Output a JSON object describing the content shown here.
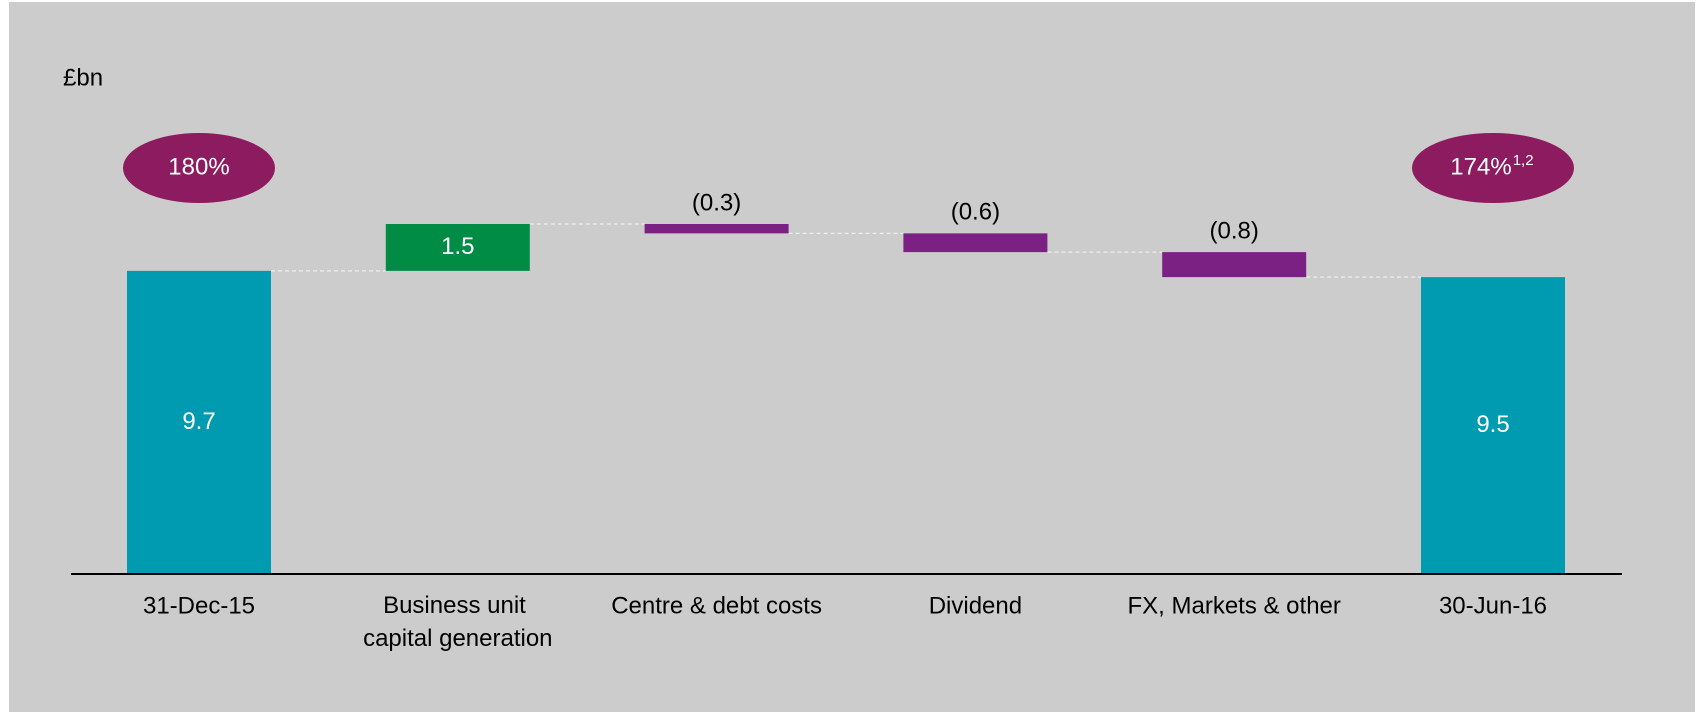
{
  "chart_data": {
    "type": "waterfall",
    "unit": "£bn",
    "categories": [
      "31-Dec-15",
      "Business unit capital generation",
      "Centre & debt costs",
      "Dividend",
      "FX, Markets  & other",
      "30-Jun-16"
    ],
    "values": [
      9.7,
      1.5,
      -0.3,
      -0.6,
      -0.8,
      9.5
    ],
    "value_labels": [
      "9.7",
      "1.5",
      "(0.3)",
      "(0.6)",
      "(0.8)",
      "9.5"
    ],
    "kinds": [
      "total",
      "delta",
      "delta",
      "delta",
      "delta",
      "total"
    ],
    "colors": {
      "total": "#009bb1",
      "increase": "#008c45",
      "decrease": "#7b2183"
    },
    "badges": [
      {
        "category": 0,
        "text": "180%",
        "superscript": null
      },
      {
        "category": 5,
        "text": "174%",
        "superscript": "1,2"
      }
    ],
    "badge_color": "#8c1c5f"
  }
}
